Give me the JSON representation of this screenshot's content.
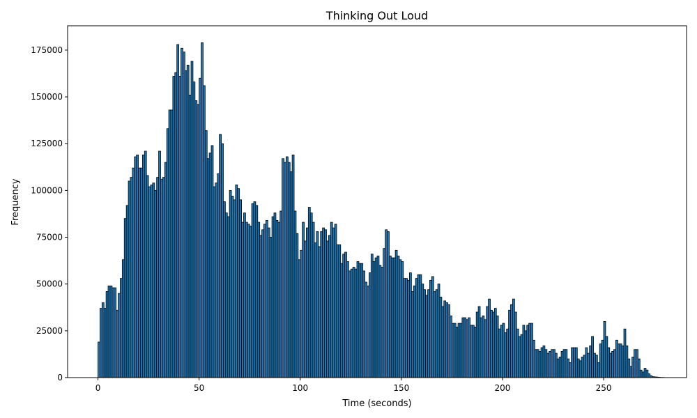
{
  "chart_data": {
    "type": "bar",
    "title": "Thinking Out Loud",
    "xlabel": "Time (seconds)",
    "ylabel": "Frequency",
    "xlim": [
      -15,
      291
    ],
    "ylim": [
      0,
      188000
    ],
    "xticks": [
      0,
      50,
      100,
      150,
      200,
      250
    ],
    "yticks": [
      0,
      25000,
      50000,
      75000,
      100000,
      125000,
      150000,
      175000
    ],
    "bin_width": 1,
    "bin_start": 0,
    "bar_color": "#1f77b4",
    "edge_color": "#000000",
    "grid": false,
    "values": [
      19000,
      37000,
      40000,
      37000,
      46000,
      49000,
      49000,
      48000,
      48000,
      36000,
      45000,
      53000,
      63000,
      85000,
      92000,
      105000,
      107000,
      112000,
      118000,
      119000,
      112000,
      112000,
      119000,
      121000,
      108000,
      102000,
      103000,
      104000,
      100000,
      107000,
      121000,
      106000,
      107000,
      115000,
      133000,
      143000,
      143000,
      161000,
      163000,
      178000,
      161000,
      176000,
      174000,
      164000,
      167000,
      151000,
      169000,
      158000,
      148000,
      146000,
      160000,
      179000,
      156000,
      132000,
      117000,
      120000,
      124000,
      102000,
      104000,
      109000,
      130000,
      125000,
      94000,
      88000,
      86000,
      100000,
      97000,
      95000,
      103000,
      101000,
      95000,
      83000,
      88000,
      83000,
      82000,
      81000,
      93000,
      94000,
      92000,
      83000,
      76000,
      79000,
      82000,
      84000,
      80000,
      75000,
      86000,
      88000,
      84000,
      83000,
      89000,
      117000,
      115000,
      118000,
      115000,
      110000,
      119000,
      89000,
      77000,
      63000,
      68000,
      83000,
      73000,
      80000,
      91000,
      88000,
      83000,
      72000,
      78000,
      70000,
      78000,
      80000,
      79000,
      73000,
      76000,
      83000,
      80000,
      82000,
      71000,
      71000,
      61000,
      66000,
      67000,
      62000,
      57000,
      58000,
      59000,
      58000,
      62000,
      61000,
      61000,
      57000,
      51000,
      49000,
      56000,
      66000,
      62000,
      64000,
      65000,
      60000,
      59000,
      69000,
      79000,
      78000,
      65000,
      64000,
      64000,
      68000,
      65000,
      63000,
      62000,
      53000,
      53000,
      52000,
      56000,
      46000,
      49000,
      53000,
      55000,
      55000,
      50000,
      47000,
      44000,
      47000,
      52000,
      54000,
      46000,
      47000,
      50000,
      43000,
      38000,
      41000,
      40000,
      39000,
      33000,
      29000,
      29000,
      27000,
      29000,
      29000,
      32000,
      32000,
      31000,
      32000,
      28000,
      28000,
      27000,
      35000,
      38000,
      32000,
      33000,
      31000,
      38000,
      42000,
      36000,
      35000,
      37000,
      33000,
      26000,
      28000,
      29000,
      24000,
      26000,
      36000,
      39000,
      42000,
      35000,
      26000,
      22000,
      23000,
      28000,
      25000,
      28000,
      29000,
      29000,
      20000,
      15000,
      15000,
      14000,
      16000,
      17000,
      15000,
      13000,
      14000,
      15000,
      15000,
      13000,
      10000,
      11000,
      14000,
      15000,
      15000,
      10000,
      8000,
      16000,
      16000,
      16000,
      10000,
      9000,
      11000,
      12000,
      16000,
      13000,
      17000,
      22000,
      13000,
      12000,
      8000,
      18000,
      20000,
      30000,
      22000,
      16000,
      13000,
      14000,
      15000,
      20000,
      18000,
      18000,
      17000,
      26000,
      17000,
      10000,
      6000,
      11000,
      15000,
      15000,
      10000,
      4000,
      3000,
      5000,
      4000,
      2000,
      1000,
      500,
      400,
      300,
      200,
      100,
      100
    ]
  }
}
